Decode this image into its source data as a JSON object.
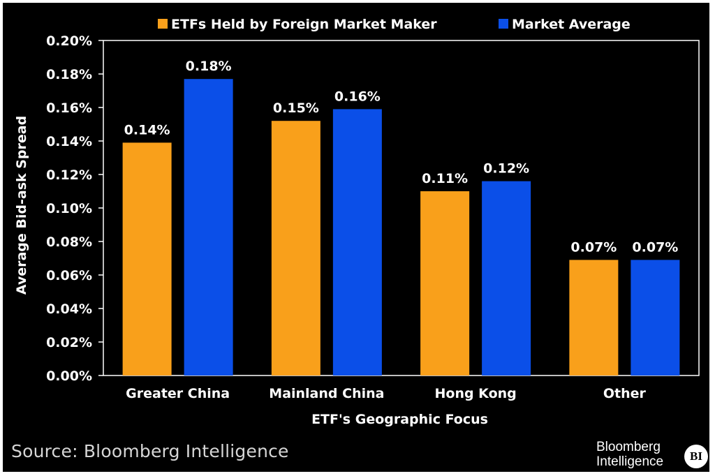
{
  "chart_data": {
    "type": "bar",
    "categories": [
      "Greater China",
      "Mainland China",
      "Hong Kong",
      "Other"
    ],
    "series": [
      {
        "name": "ETFs Held by Foreign Market Maker",
        "color": "#f9a01b",
        "values": [
          0.139,
          0.152,
          0.11,
          0.069
        ],
        "labels": [
          "0.14%",
          "0.15%",
          "0.11%",
          "0.07%"
        ]
      },
      {
        "name": "Market Average",
        "color": "#0b4fe8",
        "values": [
          0.177,
          0.159,
          0.116,
          0.069
        ],
        "labels": [
          "0.18%",
          "0.16%",
          "0.12%",
          "0.07%"
        ]
      }
    ],
    "xlabel": "ETF's Geographic Focus",
    "ylabel": "Average Bid-ask Spread",
    "ylim": [
      0,
      0.2
    ],
    "y_ticks": [
      0,
      0.02,
      0.04,
      0.06,
      0.08,
      0.1,
      0.12,
      0.14,
      0.16,
      0.18,
      0.2
    ],
    "y_tick_labels": [
      "0.00%",
      "0.02%",
      "0.04%",
      "0.06%",
      "0.08%",
      "0.10%",
      "0.12%",
      "0.14%",
      "0.16%",
      "0.18%",
      "0.20%"
    ],
    "grid": false,
    "legend_position": "top-center",
    "background": "#000000"
  },
  "footer": {
    "source": "Source: Bloomberg Intelligence",
    "brand_line1": "Bloomberg",
    "brand_line2": "Intelligence",
    "brand_badge": "BI"
  }
}
